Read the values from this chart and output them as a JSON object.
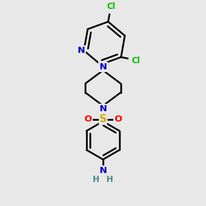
{
  "bg_color": "#e8e8e8",
  "atom_colors": {
    "C": "#000000",
    "N": "#0000cc",
    "S": "#ccaa00",
    "O": "#ff0000",
    "Cl": "#00bb00",
    "H": "#000000"
  },
  "bond_color": "#000000",
  "bond_width": 1.8,
  "fig_size": [
    3.0,
    3.0
  ],
  "dpi": 100
}
